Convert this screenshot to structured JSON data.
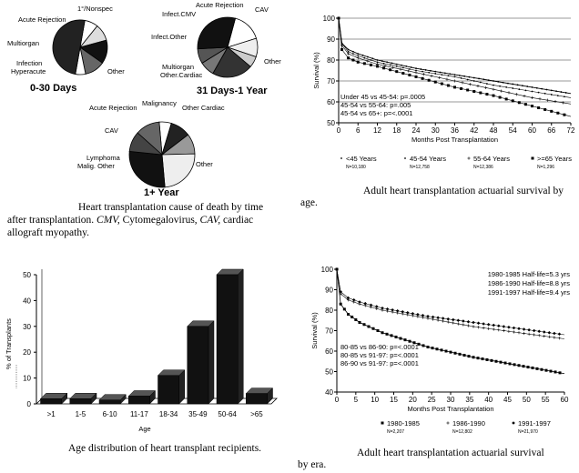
{
  "pies": [
    {
      "title": "0-30 Days",
      "slices": [
        {
          "label": "1°/Nonspec",
          "value": 8,
          "fill": "#ffffff"
        },
        {
          "label": "Acute Rejection",
          "value": 10,
          "fill": "#dddddd"
        },
        {
          "label": "Multiorgan",
          "value": 14,
          "fill": "#111111"
        },
        {
          "label": "Infection",
          "value": 12,
          "fill": "#666666"
        },
        {
          "label": "Hyperacute",
          "value": 6,
          "fill": "#ffffff"
        },
        {
          "label": "Other",
          "value": 50,
          "fill": "#222222"
        }
      ]
    },
    {
      "title": "31 Days-1 Year",
      "slices": [
        {
          "label": "Acute Rejection",
          "value": 16,
          "fill": "#ffffff"
        },
        {
          "label": "CAV",
          "value": 10,
          "fill": "#eeeeee"
        },
        {
          "label": "Infect.CMV",
          "value": 6,
          "fill": "#cccccc"
        },
        {
          "label": "Infect.Other",
          "value": 22,
          "fill": "#333333"
        },
        {
          "label": "Multiorgan",
          "value": 8,
          "fill": "#777777"
        },
        {
          "label": "Other.Cardiac",
          "value": 8,
          "fill": "#555555"
        },
        {
          "label": "Other",
          "value": 30,
          "fill": "#111111"
        }
      ]
    },
    {
      "title": "1+ Year",
      "slices": [
        {
          "label": "Acute Rejection",
          "value": 6,
          "fill": "#ffffff"
        },
        {
          "label": "Malignancy",
          "value": 10,
          "fill": "#222222"
        },
        {
          "label": "Other Cardiac",
          "value": 10,
          "fill": "#999999"
        },
        {
          "label": "CAV",
          "value": 24,
          "fill": "#eeeeee"
        },
        {
          "label": "Other",
          "value": 28,
          "fill": "#111111"
        },
        {
          "label": "Malig. Other",
          "value": 10,
          "fill": "#444444"
        },
        {
          "label": "Lymphoma",
          "value": 12,
          "fill": "#666666"
        }
      ]
    }
  ],
  "captions": {
    "pie_caption_1": "Heart transplantation cause of death by time",
    "pie_caption_2": "after transplantation.",
    "pie_caption_cmv": "CMV,",
    "pie_caption_3": "Cytomegalovirus,",
    "pie_caption_cav": "CAV,",
    "pie_caption_4": "cardiac",
    "pie_caption_5": "allograft myopathy.",
    "surv_age_caption": "Adult heart transplantation actuarial survival by",
    "surv_age_caption_2": "age.",
    "bar_caption": "Age distribution of heart transplant recipients.",
    "surv_era_caption": "Adult heart transplantation actuarial survival",
    "surv_era_caption_2": "by era."
  },
  "chart_data": [
    {
      "type": "line",
      "title": "Adult heart transplantation actuarial survival by age",
      "xlabel": "Months Post Transplantation",
      "ylabel": "Survival (%)",
      "xlim": [
        0,
        72
      ],
      "ylim": [
        50,
        100
      ],
      "xticks": [
        0,
        6,
        12,
        18,
        24,
        30,
        36,
        42,
        48,
        54,
        60,
        66,
        72
      ],
      "yticks": [
        50,
        60,
        70,
        80,
        90,
        100
      ],
      "legend_position": "bottom",
      "series": [
        {
          "name": "<45 Years",
          "n": "N=10,180",
          "x": [
            0,
            1,
            3,
            6,
            12,
            24,
            36,
            48,
            60,
            72
          ],
          "values": [
            100,
            88,
            85,
            83,
            80,
            76,
            73,
            70,
            67,
            64
          ]
        },
        {
          "name": "45-54 Years",
          "n": "N=12,758",
          "x": [
            0,
            1,
            3,
            6,
            12,
            24,
            36,
            48,
            60,
            72
          ],
          "values": [
            100,
            88,
            84,
            82,
            79,
            75,
            72,
            68,
            65,
            62
          ]
        },
        {
          "name": "55-64 Years",
          "n": "N=12,386",
          "x": [
            0,
            1,
            3,
            6,
            12,
            24,
            36,
            48,
            60,
            72
          ],
          "values": [
            100,
            87,
            83,
            81,
            78,
            74,
            70,
            66,
            62,
            59
          ]
        },
        {
          "name": ">=65 Years",
          "n": "N=1,296",
          "x": [
            0,
            1,
            3,
            6,
            12,
            24,
            36,
            48,
            60,
            72
          ],
          "values": [
            100,
            85,
            81,
            79,
            77,
            72,
            67,
            63,
            58,
            53
          ]
        }
      ],
      "annotations": [
        "Under 45 vs 45-54: p=.0005",
        "45-54 vs 55-64: p=.005",
        "45-54 vs 65+: p=<.0001"
      ]
    },
    {
      "type": "bar",
      "title": "Age distribution of heart transplant recipients",
      "xlabel": "Age",
      "ylabel": "% of Transplants",
      "categories": [
        ">1",
        "1-5",
        "6-10",
        "11-17",
        "18-34",
        "35-49",
        "50-64",
        ">65"
      ],
      "values": [
        2,
        2,
        1.5,
        3,
        11,
        30,
        50,
        4
      ],
      "ylim": [
        0,
        50
      ],
      "yticks": [
        0,
        10,
        20,
        30,
        40,
        50
      ]
    },
    {
      "type": "line",
      "title": "Adult heart transplantation actuarial survival by era",
      "xlabel": "Months Post Transplantation",
      "ylabel": "Survival (%)",
      "xlim": [
        0,
        60
      ],
      "ylim": [
        40,
        100
      ],
      "xticks": [
        0,
        5,
        10,
        15,
        20,
        25,
        30,
        35,
        40,
        45,
        50,
        55,
        60
      ],
      "yticks": [
        40,
        50,
        60,
        70,
        80,
        90,
        100
      ],
      "legend_position": "bottom",
      "series": [
        {
          "name": "1980-1985",
          "n": "N=2,207",
          "x": [
            0,
            1,
            3,
            6,
            12,
            24,
            36,
            48,
            60
          ],
          "values": [
            100,
            83,
            78,
            74,
            69,
            62,
            57,
            53,
            49
          ]
        },
        {
          "name": "1986-1990",
          "n": "N=12,802",
          "x": [
            0,
            1,
            3,
            6,
            12,
            24,
            36,
            48,
            60
          ],
          "values": [
            100,
            88,
            85,
            83,
            80,
            76,
            72,
            69,
            66
          ]
        },
        {
          "name": "1991-1997",
          "n": "N=21,970",
          "x": [
            0,
            1,
            3,
            6,
            12,
            24,
            36,
            48,
            60
          ],
          "values": [
            100,
            89,
            86,
            84,
            81,
            77,
            74,
            71,
            68
          ]
        }
      ],
      "half_life_labels": [
        "1980-1985 Half-life=5.3 yrs",
        "1986-1990 Half-life=8.8 yrs",
        "1991-1997 Half-life=9.4 yrs"
      ],
      "annotations": [
        "80-85 vs 86-90: p=<.0001",
        "80-85 vs 91-97: p=<.0001",
        "86-90 vs 91-97: p=<.0001"
      ]
    }
  ]
}
